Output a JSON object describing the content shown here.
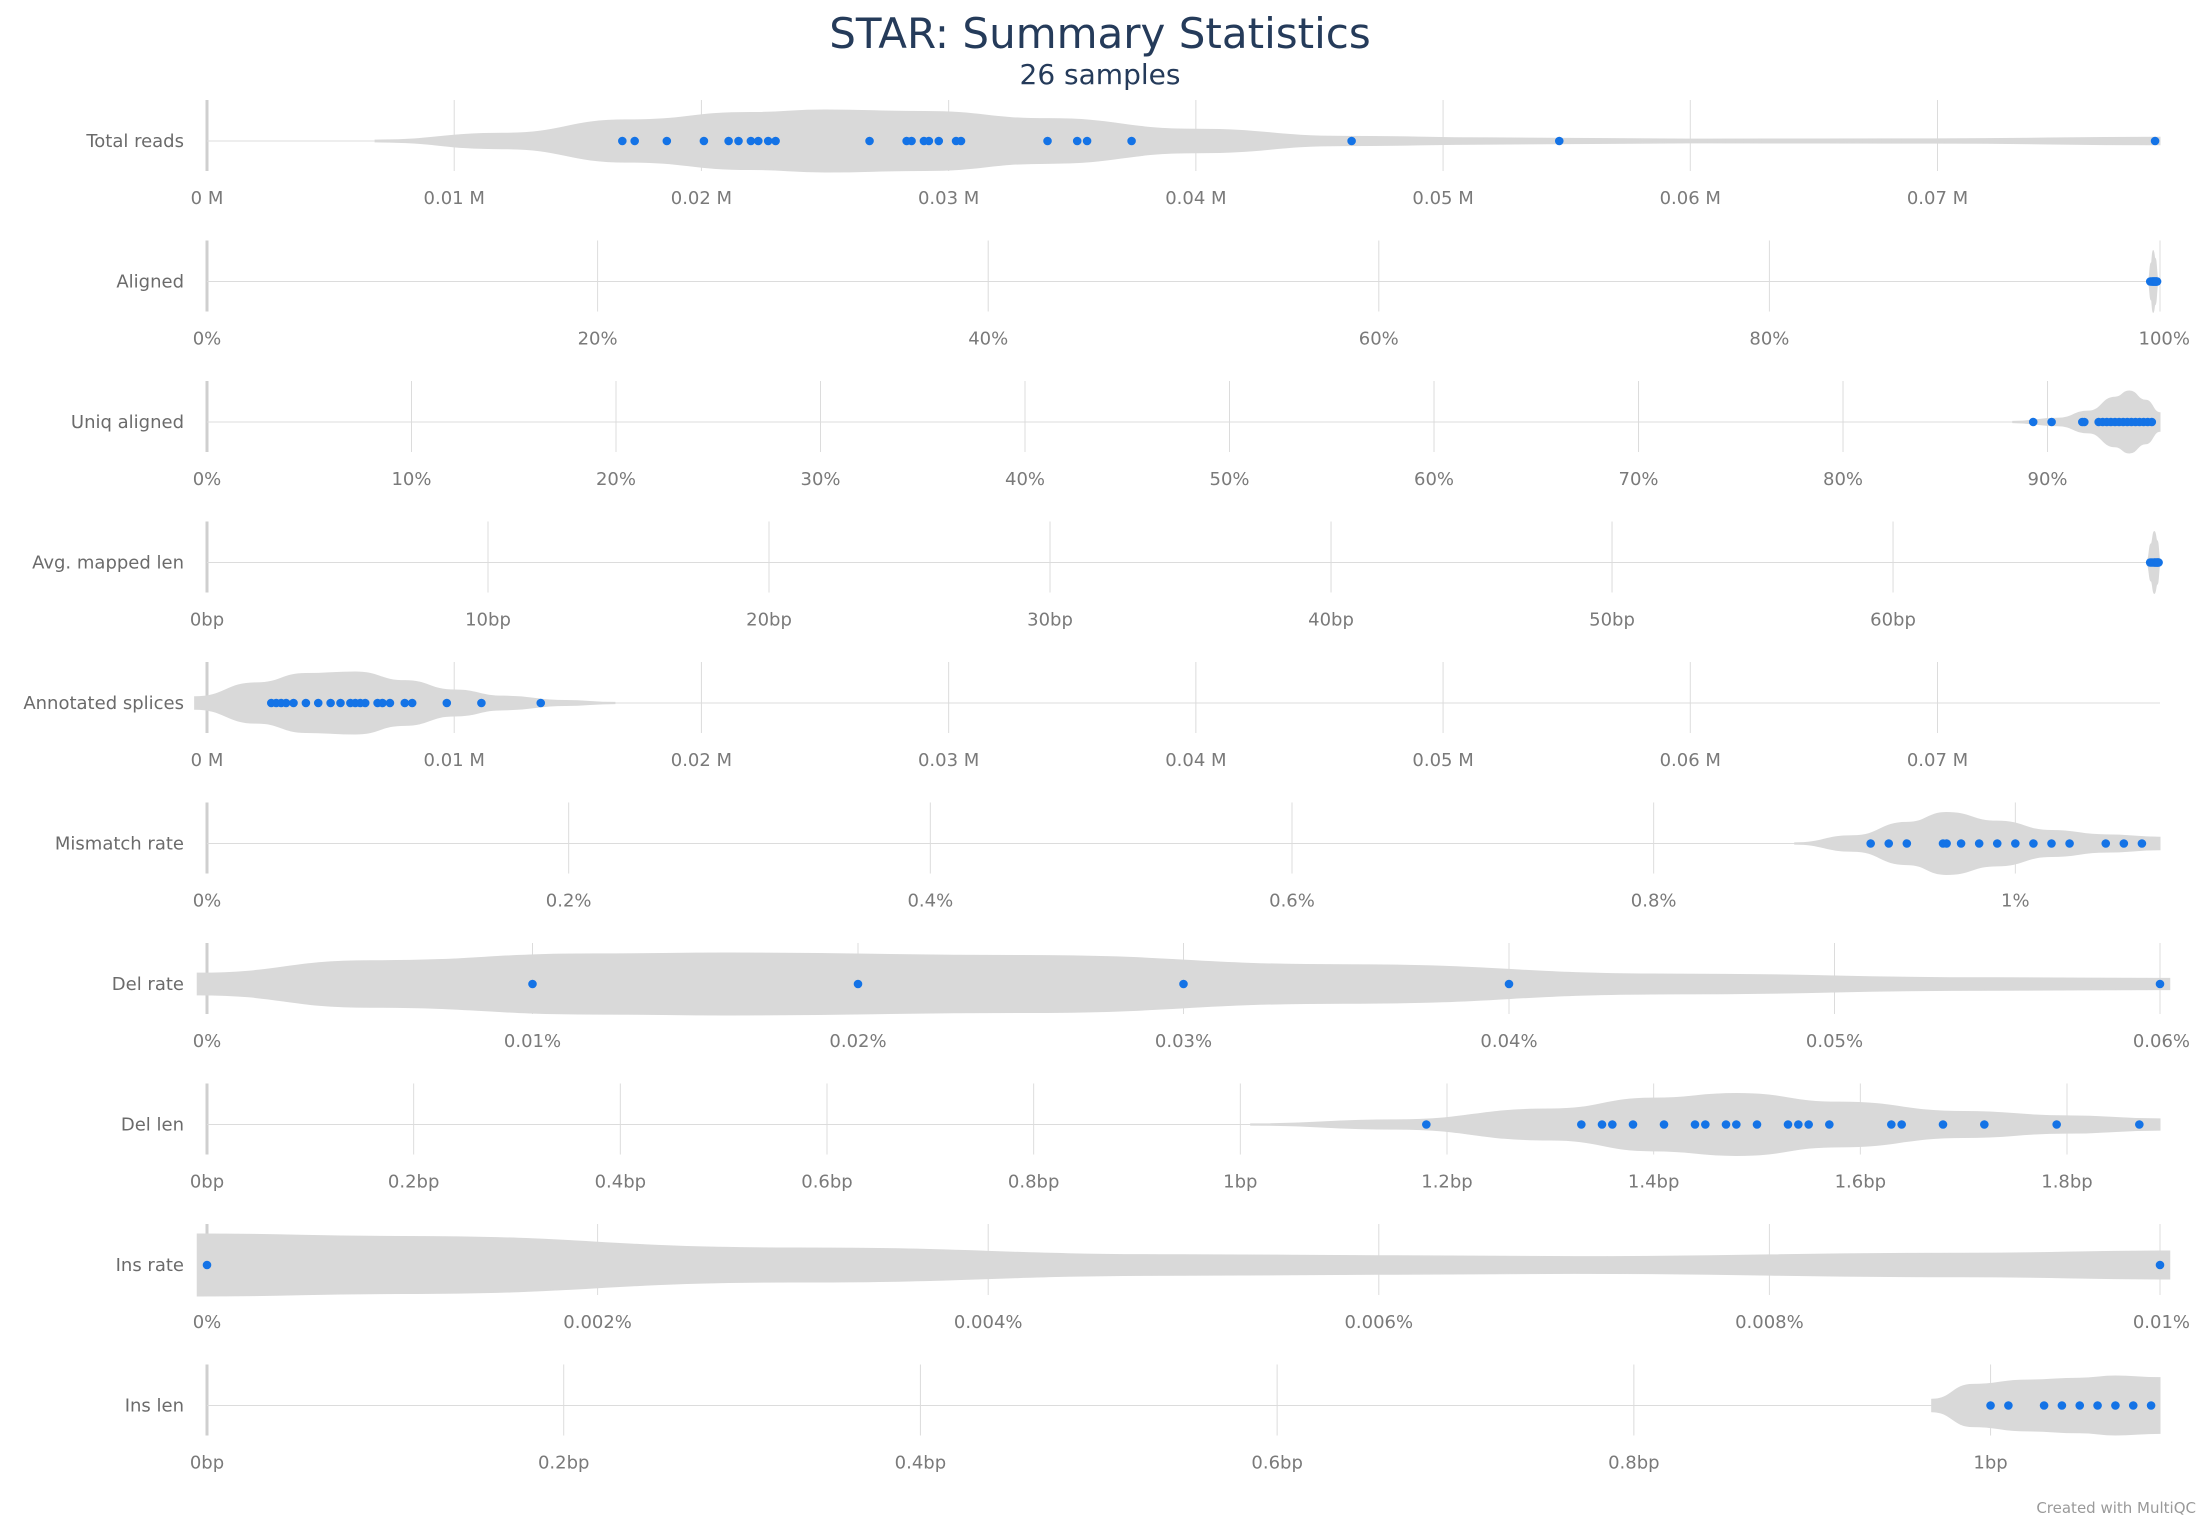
{
  "chart_data": {
    "type": "violin",
    "title": "STAR: Summary Statistics",
    "subtitle": "26 samples",
    "credit": "Created with MultiQC",
    "colors": {
      "point": "#1473e6",
      "violin": "#d9d9d9",
      "grid": "#dcdcdc",
      "title": "#253b5a"
    },
    "rows": [
      {
        "label": "Total reads",
        "xlim": [
          0,
          0.079
        ],
        "ticks": [
          {
            "v": 0,
            "label": "0 M"
          },
          {
            "v": 0.01,
            "label": "0.01 M"
          },
          {
            "v": 0.02,
            "label": "0.02 M"
          },
          {
            "v": 0.03,
            "label": "0.03 M"
          },
          {
            "v": 0.04,
            "label": "0.04 M"
          },
          {
            "v": 0.05,
            "label": "0.05 M"
          },
          {
            "v": 0.06,
            "label": "0.06 M"
          },
          {
            "v": 0.07,
            "label": "0.07 M"
          }
        ],
        "points": [
          0.0168,
          0.0173,
          0.0186,
          0.0201,
          0.0211,
          0.0215,
          0.022,
          0.0223,
          0.0227,
          0.023,
          0.0268,
          0.0283,
          0.0285,
          0.029,
          0.0292,
          0.0296,
          0.0303,
          0.0305,
          0.034,
          0.0352,
          0.0356,
          0.0374,
          0.0463,
          0.0547,
          0.0788
        ],
        "violin": [
          [
            0.0068,
            0.03
          ],
          [
            0.012,
            0.25
          ],
          [
            0.017,
            0.68
          ],
          [
            0.022,
            0.92
          ],
          [
            0.025,
            1.0
          ],
          [
            0.029,
            0.95
          ],
          [
            0.034,
            0.72
          ],
          [
            0.04,
            0.38
          ],
          [
            0.046,
            0.15
          ],
          [
            0.052,
            0.1
          ],
          [
            0.06,
            0.06
          ],
          [
            0.07,
            0.07
          ],
          [
            0.079,
            0.12
          ]
        ]
      },
      {
        "label": "Aligned",
        "xlim": [
          0,
          100
        ],
        "ticks": [
          {
            "v": 0,
            "label": "0%"
          },
          {
            "v": 20,
            "label": "20%"
          },
          {
            "v": 40,
            "label": "40%"
          },
          {
            "v": 60,
            "label": "60%"
          },
          {
            "v": 80,
            "label": "80%"
          },
          {
            "v": 100,
            "label": "100%"
          }
        ],
        "points": [
          99.5,
          99.55,
          99.6,
          99.62,
          99.65,
          99.68,
          99.7,
          99.72,
          99.75,
          99.78,
          99.8,
          99.82,
          99.85
        ],
        "violin": [
          [
            99.4,
            0.05
          ],
          [
            99.55,
            0.6
          ],
          [
            99.65,
            1.0
          ],
          [
            99.75,
            0.75
          ],
          [
            99.9,
            0.1
          ]
        ]
      },
      {
        "label": "Uniq aligned",
        "xlim": [
          0,
          95.5
        ],
        "ticks": [
          {
            "v": 0,
            "label": "0%"
          },
          {
            "v": 10,
            "label": "10%"
          },
          {
            "v": 20,
            "label": "20%"
          },
          {
            "v": 30,
            "label": "30%"
          },
          {
            "v": 40,
            "label": "40%"
          },
          {
            "v": 50,
            "label": "50%"
          },
          {
            "v": 60,
            "label": "60%"
          },
          {
            "v": 70,
            "label": "70%"
          },
          {
            "v": 80,
            "label": "80%"
          },
          {
            "v": 90,
            "label": "90%"
          }
        ],
        "points": [
          89.3,
          90.2,
          91.7,
          91.8,
          92.5,
          92.7,
          92.9,
          93.1,
          93.3,
          93.5,
          93.7,
          93.9,
          94.1,
          94.3,
          94.5,
          94.7,
          94.9,
          95.1
        ],
        "violin": [
          [
            88.3,
            0.02
          ],
          [
            90.5,
            0.12
          ],
          [
            92.0,
            0.35
          ],
          [
            93.3,
            0.8
          ],
          [
            94.0,
            1.0
          ],
          [
            94.8,
            0.7
          ],
          [
            95.5,
            0.3
          ]
        ]
      },
      {
        "label": "Avg. mapped len",
        "xlim": [
          0,
          69.5
        ],
        "ticks": [
          {
            "v": 0,
            "label": "0bp"
          },
          {
            "v": 10,
            "label": "10bp"
          },
          {
            "v": 20,
            "label": "20bp"
          },
          {
            "v": 30,
            "label": "30bp"
          },
          {
            "v": 40,
            "label": "40bp"
          },
          {
            "v": 50,
            "label": "50bp"
          },
          {
            "v": 60,
            "label": "60bp"
          }
        ],
        "points": [
          69.15,
          69.2,
          69.25,
          69.3,
          69.32,
          69.35,
          69.38,
          69.4,
          69.42,
          69.45
        ],
        "violin": [
          [
            69.05,
            0.1
          ],
          [
            69.18,
            0.6
          ],
          [
            69.3,
            1.0
          ],
          [
            69.4,
            0.7
          ],
          [
            69.5,
            0.1
          ]
        ]
      },
      {
        "label": "Annotated splices",
        "xlim": [
          0,
          0.079
        ],
        "ticks": [
          {
            "v": 0,
            "label": "0 M"
          },
          {
            "v": 0.01,
            "label": "0.01 M"
          },
          {
            "v": 0.02,
            "label": "0.02 M"
          },
          {
            "v": 0.03,
            "label": "0.03 M"
          },
          {
            "v": 0.04,
            "label": "0.04 M"
          },
          {
            "v": 0.05,
            "label": "0.05 M"
          },
          {
            "v": 0.06,
            "label": "0.06 M"
          },
          {
            "v": 0.07,
            "label": "0.07 M"
          }
        ],
        "points": [
          0.0026,
          0.0028,
          0.003,
          0.0032,
          0.0035,
          0.004,
          0.0045,
          0.005,
          0.0054,
          0.0058,
          0.006,
          0.0062,
          0.0064,
          0.0069,
          0.0071,
          0.0074,
          0.008,
          0.0083,
          0.0097,
          0.0111,
          0.0135
        ],
        "violin": [
          [
            -0.0005,
            0.2
          ],
          [
            0.002,
            0.65
          ],
          [
            0.004,
            0.95
          ],
          [
            0.006,
            1.0
          ],
          [
            0.008,
            0.72
          ],
          [
            0.01,
            0.42
          ],
          [
            0.012,
            0.22
          ],
          [
            0.0145,
            0.08
          ],
          [
            0.0165,
            0.02
          ]
        ]
      },
      {
        "label": "Mismatch rate",
        "xlim": [
          0,
          1.08
        ],
        "ticks": [
          {
            "v": 0,
            "label": "0%"
          },
          {
            "v": 0.2,
            "label": "0.2%"
          },
          {
            "v": 0.4,
            "label": "0.4%"
          },
          {
            "v": 0.6,
            "label": "0.6%"
          },
          {
            "v": 0.8,
            "label": "0.8%"
          },
          {
            "v": 1.0,
            "label": "1%"
          }
        ],
        "points": [
          0.92,
          0.93,
          0.94,
          0.96,
          0.962,
          0.97,
          0.98,
          0.99,
          1.0,
          1.01,
          1.02,
          1.03,
          1.05,
          1.06,
          1.07
        ],
        "violin": [
          [
            0.878,
            0.02
          ],
          [
            0.91,
            0.25
          ],
          [
            0.94,
            0.68
          ],
          [
            0.962,
            1.0
          ],
          [
            0.99,
            0.72
          ],
          [
            1.02,
            0.42
          ],
          [
            1.05,
            0.28
          ],
          [
            1.08,
            0.2
          ]
        ]
      },
      {
        "label": "Del rate",
        "xlim": [
          0,
          0.06
        ],
        "ticks": [
          {
            "v": 0,
            "label": "0%"
          },
          {
            "v": 0.01,
            "label": "0.01%"
          },
          {
            "v": 0.02,
            "label": "0.02%"
          },
          {
            "v": 0.03,
            "label": "0.03%"
          },
          {
            "v": 0.04,
            "label": "0.04%"
          },
          {
            "v": 0.05,
            "label": "0.05%"
          },
          {
            "v": 0.06,
            "label": "0.06%"
          }
        ],
        "points": [
          0.01,
          0.02,
          0.03,
          0.04,
          0.06
        ],
        "violin": [
          [
            -0.0003,
            0.35
          ],
          [
            0.005,
            0.75
          ],
          [
            0.012,
            0.97
          ],
          [
            0.016,
            1.0
          ],
          [
            0.025,
            0.92
          ],
          [
            0.035,
            0.62
          ],
          [
            0.045,
            0.32
          ],
          [
            0.055,
            0.2
          ],
          [
            0.0603,
            0.18
          ]
        ]
      },
      {
        "label": "Del len",
        "xlim": [
          0,
          1.89
        ],
        "ticks": [
          {
            "v": 0,
            "label": "0bp"
          },
          {
            "v": 0.2,
            "label": "0.2bp"
          },
          {
            "v": 0.4,
            "label": "0.4bp"
          },
          {
            "v": 0.6,
            "label": "0.6bp"
          },
          {
            "v": 0.8,
            "label": "0.8bp"
          },
          {
            "v": 1.0,
            "label": "1bp"
          },
          {
            "v": 1.2,
            "label": "1.2bp"
          },
          {
            "v": 1.4,
            "label": "1.4bp"
          },
          {
            "v": 1.6,
            "label": "1.6bp"
          },
          {
            "v": 1.8,
            "label": "1.8bp"
          }
        ],
        "points": [
          1.18,
          1.33,
          1.35,
          1.36,
          1.38,
          1.41,
          1.44,
          1.45,
          1.47,
          1.48,
          1.5,
          1.53,
          1.54,
          1.55,
          1.57,
          1.63,
          1.64,
          1.68,
          1.72,
          1.79,
          1.87
        ],
        "violin": [
          [
            1.01,
            0.02
          ],
          [
            1.15,
            0.15
          ],
          [
            1.3,
            0.5
          ],
          [
            1.4,
            0.85
          ],
          [
            1.48,
            1.0
          ],
          [
            1.58,
            0.72
          ],
          [
            1.7,
            0.42
          ],
          [
            1.8,
            0.28
          ],
          [
            1.89,
            0.18
          ]
        ]
      },
      {
        "label": "Ins rate",
        "xlim": [
          0,
          0.01
        ],
        "ticks": [
          {
            "v": 0,
            "label": "0%"
          },
          {
            "v": 0.002,
            "label": "0.002%"
          },
          {
            "v": 0.004,
            "label": "0.004%"
          },
          {
            "v": 0.006,
            "label": "0.006%"
          },
          {
            "v": 0.008,
            "label": "0.008%"
          },
          {
            "v": 0.01,
            "label": "0.01%"
          }
        ],
        "points": [
          0,
          0.01
        ],
        "violin": [
          [
            -5e-05,
            1.0
          ],
          [
            0.001,
            0.92
          ],
          [
            0.003,
            0.55
          ],
          [
            0.005,
            0.33
          ],
          [
            0.007,
            0.27
          ],
          [
            0.009,
            0.38
          ],
          [
            0.01005,
            0.45
          ]
        ]
      },
      {
        "label": "Ins len",
        "xlim": [
          0,
          1.095
        ],
        "ticks": [
          {
            "v": 0,
            "label": "0bp"
          },
          {
            "v": 0.2,
            "label": "0.2bp"
          },
          {
            "v": 0.4,
            "label": "0.4bp"
          },
          {
            "v": 0.6,
            "label": "0.6bp"
          },
          {
            "v": 0.8,
            "label": "0.8bp"
          },
          {
            "v": 1.0,
            "label": "1bp"
          }
        ],
        "points": [
          1.0,
          1.01,
          1.03,
          1.04,
          1.05,
          1.06,
          1.07,
          1.08,
          1.09
        ],
        "violin": [
          [
            0.967,
            0.2
          ],
          [
            0.99,
            0.68
          ],
          [
            1.02,
            0.82
          ],
          [
            1.05,
            0.88
          ],
          [
            1.07,
            0.95
          ],
          [
            1.095,
            0.9
          ]
        ]
      }
    ]
  }
}
